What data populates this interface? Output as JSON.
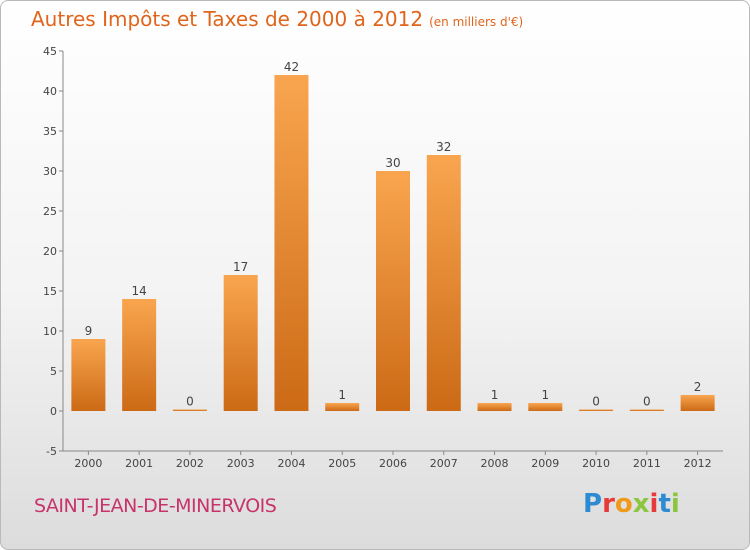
{
  "header": {
    "title": "Autres Impôts et Taxes de 2000 à 2012",
    "subtitle": "(en milliers d'€)"
  },
  "footer": {
    "commune": "SAINT-JEAN-DE-MINERVOIS",
    "logo_letters": [
      "P",
      "r",
      "o",
      "x",
      "i",
      "t",
      "i"
    ],
    "logo_colors": [
      "#2c8bd3",
      "#e73a3a",
      "#f09a1a",
      "#8cc63f",
      "#e73a3a",
      "#2c8bd3",
      "#8cc63f"
    ]
  },
  "chart_data": {
    "type": "bar",
    "title": "Autres Impôts et Taxes de 2000 à 2012",
    "subtitle": "(en milliers d'€)",
    "categories": [
      "2000",
      "2001",
      "2002",
      "2003",
      "2004",
      "2005",
      "2006",
      "2007",
      "2008",
      "2009",
      "2010",
      "2011",
      "2012"
    ],
    "values": [
      9,
      14,
      0,
      17,
      42,
      1,
      30,
      32,
      1,
      1,
      0,
      0,
      2
    ],
    "data_labels": [
      "9",
      "14",
      "0",
      "17",
      "42",
      "1",
      "30",
      "32",
      "1",
      "1",
      "0",
      "0",
      "2"
    ],
    "yticks": [
      -5,
      0,
      5,
      10,
      15,
      20,
      25,
      30,
      35,
      40,
      45
    ],
    "ylim": [
      -5,
      45
    ],
    "grid": false,
    "colors": {
      "bar_light": "#f9a54f",
      "bar_dark": "#cc6a16",
      "axis": "#888888"
    }
  }
}
